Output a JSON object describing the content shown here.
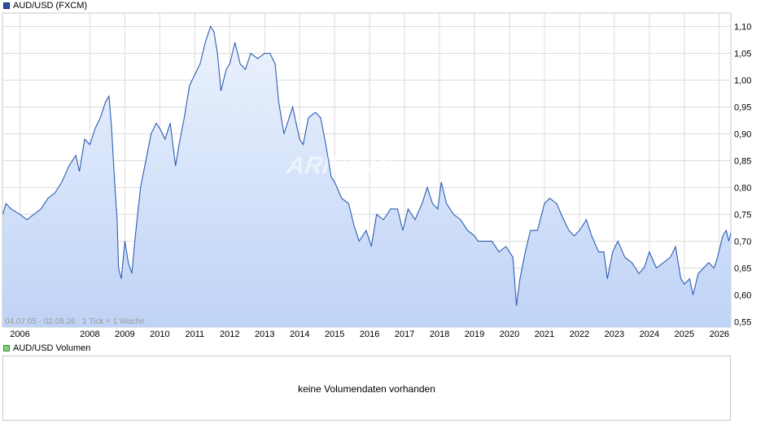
{
  "legend": {
    "price_label": "AUD/USD (FXCM)",
    "volume_label": "AUD/USD Volumen"
  },
  "info_text": "04.07.05 - 02.05.26   1 Tick = 1 Woche",
  "watermark": "ARIVA.DE",
  "volume_message": "keine Volumendaten vorhanden",
  "colors": {
    "line": "#2d5db5",
    "fill_top": "#edf3fd",
    "fill_bottom": "#bfd3f6",
    "grid": "#dcdcdc"
  },
  "chart_data": {
    "type": "area",
    "title": "AUD/USD (FXCM)",
    "xlabel": "",
    "ylabel": "",
    "x_ticks": [
      "2006",
      "2008",
      "2009",
      "2010",
      "2011",
      "2012",
      "2013",
      "2014",
      "2015",
      "2016",
      "2017",
      "2018",
      "2019",
      "2020",
      "2021",
      "2022",
      "2023",
      "2024",
      "2025",
      "2026"
    ],
    "y_ticks": [
      "1,10",
      "1,05",
      "1,00",
      "0,95",
      "0,90",
      "0,85",
      "0,80",
      "0,75",
      "0,70",
      "0,65",
      "0,60",
      "0,55"
    ],
    "ylim": [
      0.54,
      1.125
    ],
    "xlim": [
      2005.5,
      2026.33
    ],
    "grid": true,
    "series": [
      {
        "name": "AUD/USD (FXCM)",
        "points": [
          [
            2005.51,
            0.75
          ],
          [
            2005.6,
            0.77
          ],
          [
            2005.75,
            0.76
          ],
          [
            2006.0,
            0.75
          ],
          [
            2006.2,
            0.74
          ],
          [
            2006.4,
            0.75
          ],
          [
            2006.6,
            0.76
          ],
          [
            2006.8,
            0.78
          ],
          [
            2007.0,
            0.79
          ],
          [
            2007.2,
            0.81
          ],
          [
            2007.4,
            0.84
          ],
          [
            2007.6,
            0.86
          ],
          [
            2007.7,
            0.83
          ],
          [
            2007.85,
            0.89
          ],
          [
            2008.0,
            0.88
          ],
          [
            2008.15,
            0.91
          ],
          [
            2008.3,
            0.93
          ],
          [
            2008.45,
            0.96
          ],
          [
            2008.55,
            0.97
          ],
          [
            2008.62,
            0.91
          ],
          [
            2008.7,
            0.82
          ],
          [
            2008.78,
            0.74
          ],
          [
            2008.82,
            0.65
          ],
          [
            2008.9,
            0.63
          ],
          [
            2009.0,
            0.7
          ],
          [
            2009.1,
            0.66
          ],
          [
            2009.2,
            0.64
          ],
          [
            2009.3,
            0.71
          ],
          [
            2009.45,
            0.8
          ],
          [
            2009.6,
            0.85
          ],
          [
            2009.75,
            0.9
          ],
          [
            2009.9,
            0.92
          ],
          [
            2010.0,
            0.91
          ],
          [
            2010.15,
            0.89
          ],
          [
            2010.3,
            0.92
          ],
          [
            2010.45,
            0.84
          ],
          [
            2010.55,
            0.88
          ],
          [
            2010.7,
            0.93
          ],
          [
            2010.85,
            0.99
          ],
          [
            2011.0,
            1.01
          ],
          [
            2011.15,
            1.03
          ],
          [
            2011.3,
            1.07
          ],
          [
            2011.45,
            1.1
          ],
          [
            2011.55,
            1.09
          ],
          [
            2011.65,
            1.05
          ],
          [
            2011.75,
            0.98
          ],
          [
            2011.9,
            1.02
          ],
          [
            2012.0,
            1.03
          ],
          [
            2012.15,
            1.07
          ],
          [
            2012.3,
            1.03
          ],
          [
            2012.45,
            1.02
          ],
          [
            2012.6,
            1.05
          ],
          [
            2012.8,
            1.04
          ],
          [
            2013.0,
            1.05
          ],
          [
            2013.15,
            1.05
          ],
          [
            2013.3,
            1.03
          ],
          [
            2013.4,
            0.96
          ],
          [
            2013.55,
            0.9
          ],
          [
            2013.65,
            0.92
          ],
          [
            2013.8,
            0.95
          ],
          [
            2014.0,
            0.89
          ],
          [
            2014.1,
            0.88
          ],
          [
            2014.25,
            0.93
          ],
          [
            2014.45,
            0.94
          ],
          [
            2014.6,
            0.93
          ],
          [
            2014.75,
            0.88
          ],
          [
            2014.9,
            0.82
          ],
          [
            2015.0,
            0.81
          ],
          [
            2015.2,
            0.78
          ],
          [
            2015.4,
            0.77
          ],
          [
            2015.55,
            0.73
          ],
          [
            2015.7,
            0.7
          ],
          [
            2015.9,
            0.72
          ],
          [
            2016.05,
            0.69
          ],
          [
            2016.2,
            0.75
          ],
          [
            2016.4,
            0.74
          ],
          [
            2016.6,
            0.76
          ],
          [
            2016.8,
            0.76
          ],
          [
            2016.95,
            0.72
          ],
          [
            2017.1,
            0.76
          ],
          [
            2017.3,
            0.74
          ],
          [
            2017.5,
            0.77
          ],
          [
            2017.65,
            0.8
          ],
          [
            2017.8,
            0.77
          ],
          [
            2017.95,
            0.76
          ],
          [
            2018.05,
            0.81
          ],
          [
            2018.2,
            0.77
          ],
          [
            2018.4,
            0.75
          ],
          [
            2018.6,
            0.74
          ],
          [
            2018.8,
            0.72
          ],
          [
            2019.0,
            0.71
          ],
          [
            2019.1,
            0.7
          ],
          [
            2019.3,
            0.7
          ],
          [
            2019.5,
            0.7
          ],
          [
            2019.7,
            0.68
          ],
          [
            2019.9,
            0.69
          ],
          [
            2020.1,
            0.67
          ],
          [
            2020.2,
            0.58
          ],
          [
            2020.3,
            0.63
          ],
          [
            2020.45,
            0.68
          ],
          [
            2020.6,
            0.72
          ],
          [
            2020.8,
            0.72
          ],
          [
            2021.0,
            0.77
          ],
          [
            2021.15,
            0.78
          ],
          [
            2021.35,
            0.77
          ],
          [
            2021.55,
            0.74
          ],
          [
            2021.7,
            0.72
          ],
          [
            2021.85,
            0.71
          ],
          [
            2022.0,
            0.72
          ],
          [
            2022.2,
            0.74
          ],
          [
            2022.35,
            0.71
          ],
          [
            2022.55,
            0.68
          ],
          [
            2022.7,
            0.68
          ],
          [
            2022.8,
            0.63
          ],
          [
            2022.95,
            0.68
          ],
          [
            2023.1,
            0.7
          ],
          [
            2023.3,
            0.67
          ],
          [
            2023.5,
            0.66
          ],
          [
            2023.7,
            0.64
          ],
          [
            2023.85,
            0.65
          ],
          [
            2024.0,
            0.68
          ],
          [
            2024.2,
            0.65
          ],
          [
            2024.4,
            0.66
          ],
          [
            2024.6,
            0.67
          ],
          [
            2024.75,
            0.69
          ],
          [
            2024.9,
            0.63
          ],
          [
            2025.0,
            0.62
          ],
          [
            2025.15,
            0.63
          ],
          [
            2025.25,
            0.6
          ],
          [
            2025.4,
            0.64
          ],
          [
            2025.55,
            0.65
          ],
          [
            2025.7,
            0.66
          ],
          [
            2025.85,
            0.65
          ],
          [
            2025.95,
            0.67
          ],
          [
            2026.1,
            0.71
          ],
          [
            2026.2,
            0.72
          ],
          [
            2026.27,
            0.7
          ],
          [
            2026.33,
            0.715
          ]
        ]
      }
    ]
  }
}
